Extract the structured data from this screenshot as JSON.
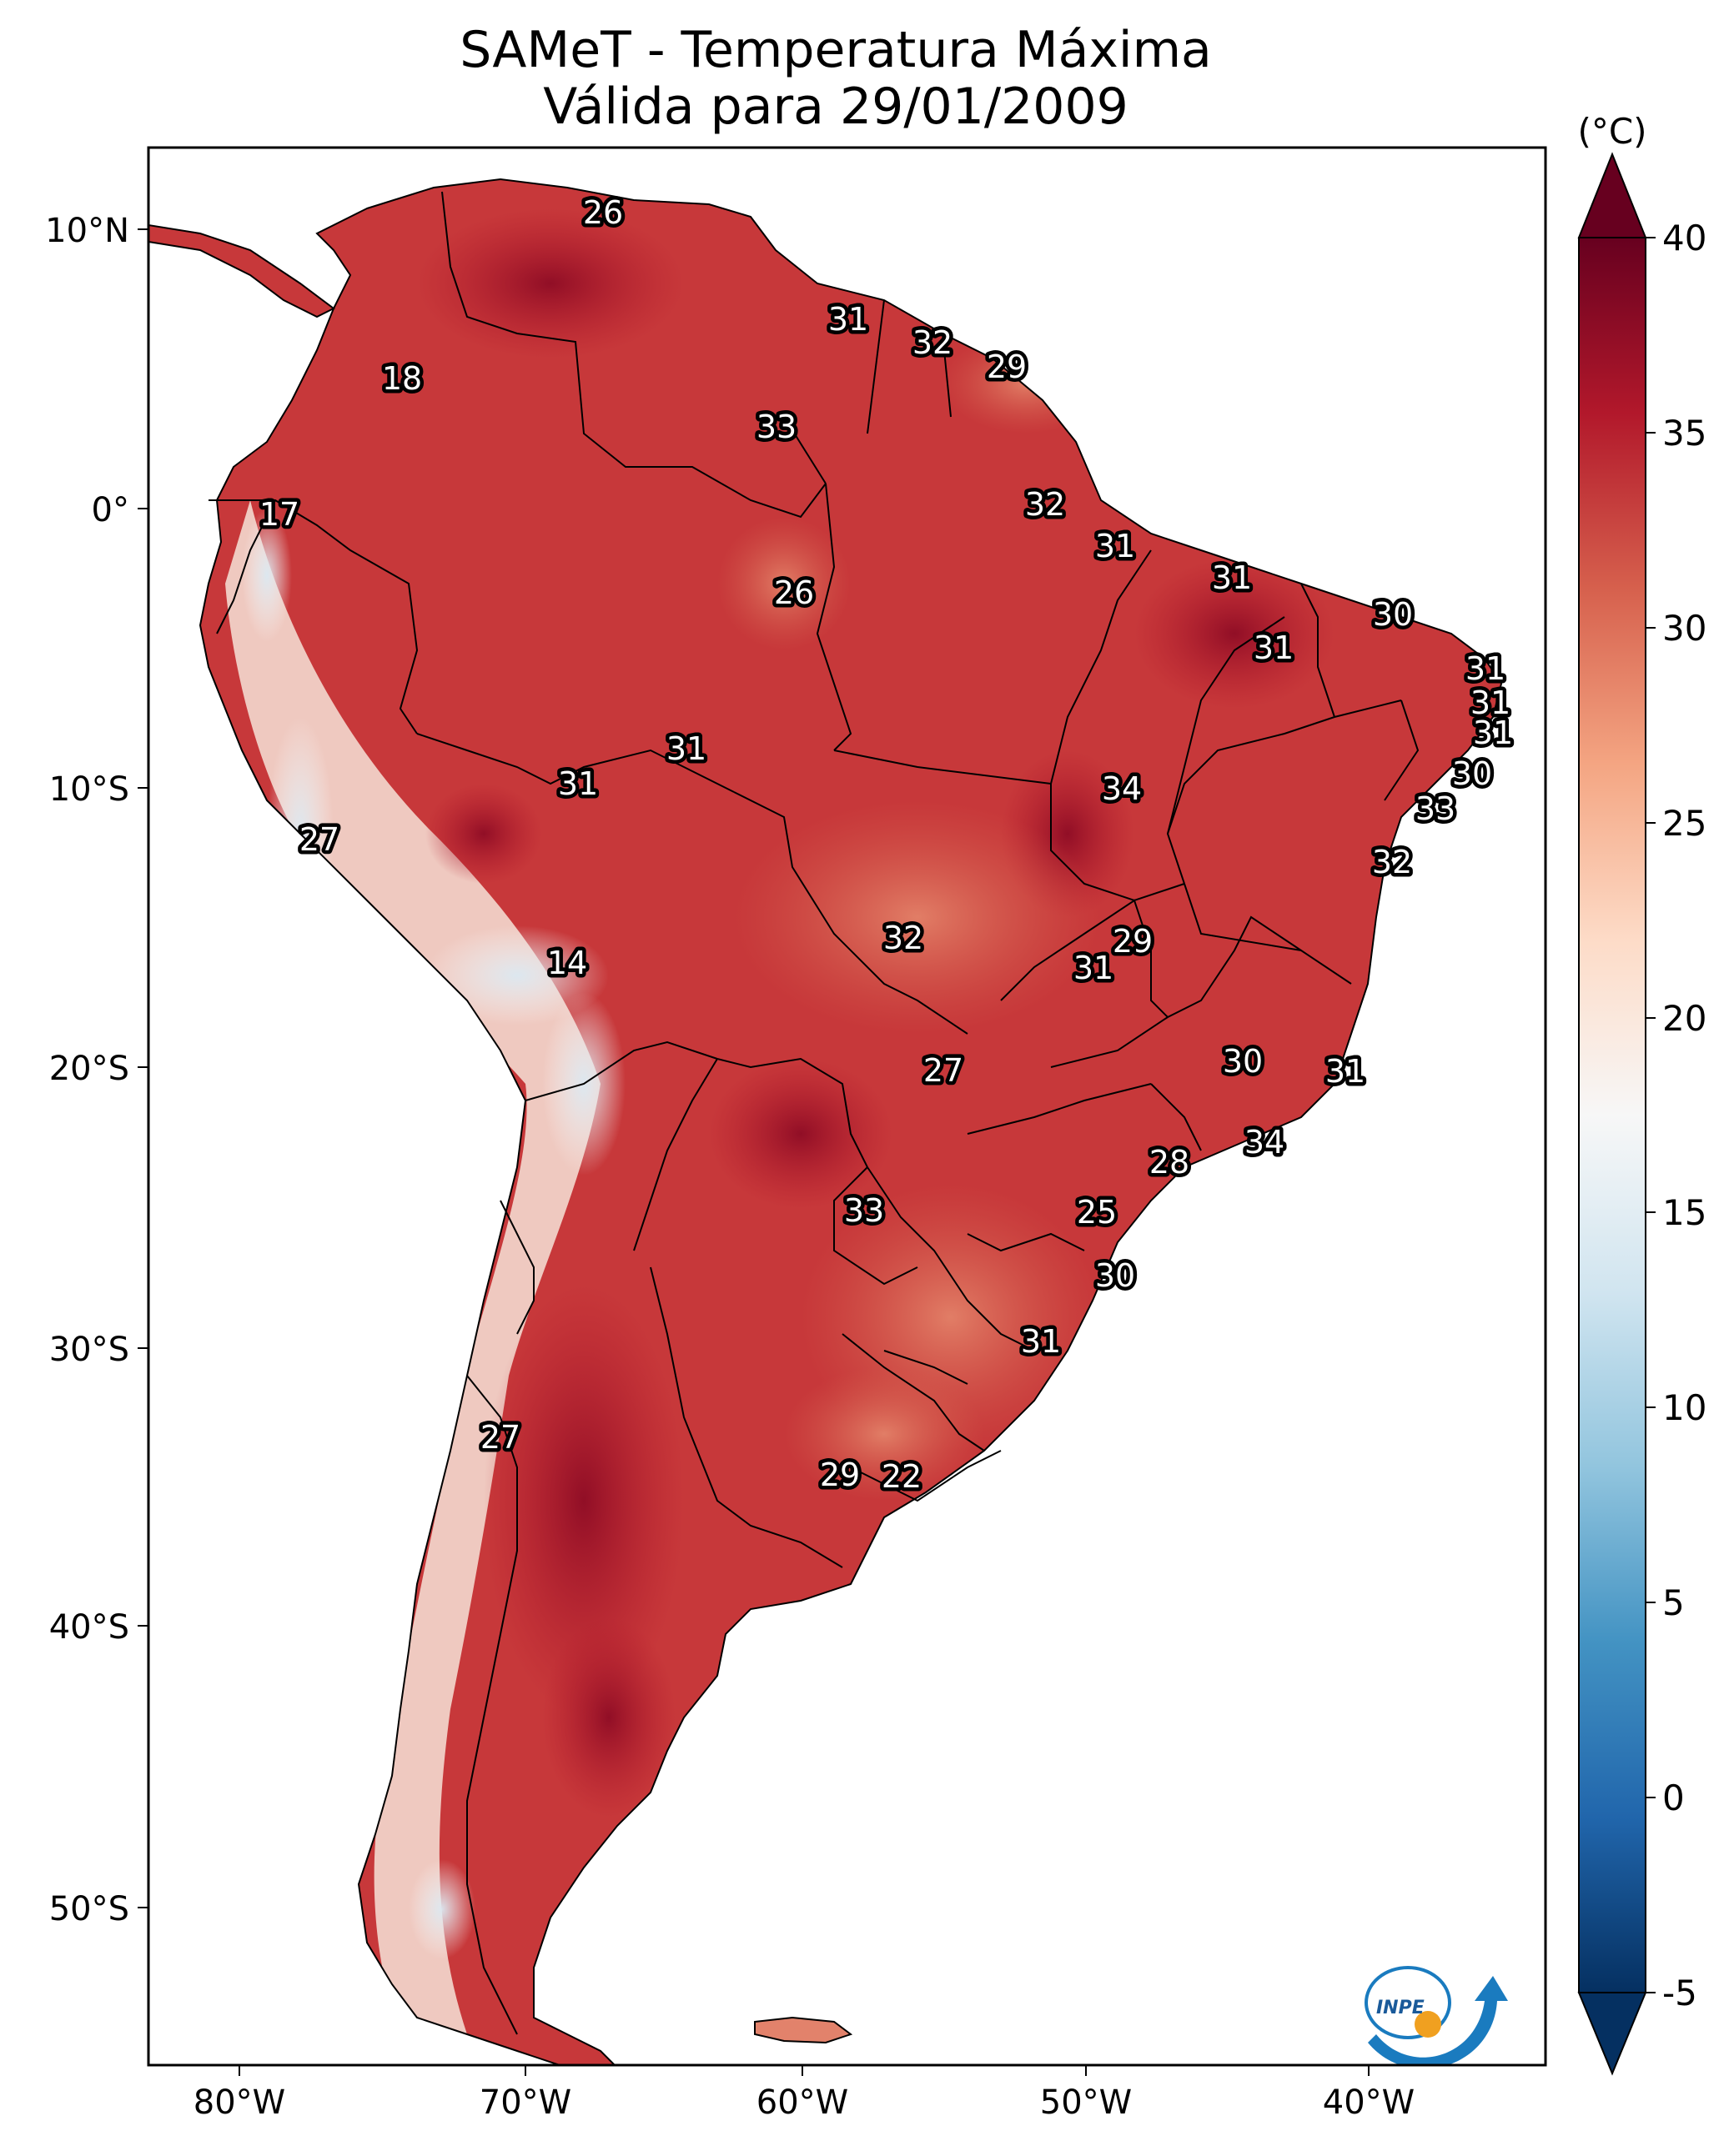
{
  "title": {
    "line1": "SAMeT - Temperatura Máxima",
    "line2": "Válida para 29/01/2009"
  },
  "axes": {
    "lon_ticks": [
      "80°W",
      "70°W",
      "60°W",
      "50°W",
      "40°W"
    ],
    "lat_ticks": [
      "10°N",
      "0°",
      "10°S",
      "20°S",
      "30°S",
      "40°S",
      "50°S"
    ]
  },
  "colorbar": {
    "unit": "(°C)",
    "ticks": [
      "40",
      "35",
      "30",
      "25",
      "20",
      "15",
      "10",
      "5",
      "0",
      "-5"
    ],
    "range": [
      -5,
      40
    ],
    "colormap": "RdBu_r",
    "colors": [
      "#053061",
      "#2166ac",
      "#4393c3",
      "#92c5de",
      "#d1e5f0",
      "#f7f7f7",
      "#fddbc7",
      "#f4a582",
      "#d6604d",
      "#b2182b",
      "#67001f"
    ]
  },
  "logo": {
    "text": "INPE"
  },
  "station_labels": [
    {
      "id": "s1",
      "value": "26"
    },
    {
      "id": "s2",
      "value": "31"
    },
    {
      "id": "s3",
      "value": "32"
    },
    {
      "id": "s4",
      "value": "29"
    },
    {
      "id": "s5",
      "value": "18"
    },
    {
      "id": "s6",
      "value": "33"
    },
    {
      "id": "s7",
      "value": "17"
    },
    {
      "id": "s8",
      "value": "32"
    },
    {
      "id": "s9",
      "value": "31"
    },
    {
      "id": "s10",
      "value": "26"
    },
    {
      "id": "s11",
      "value": "31"
    },
    {
      "id": "s12",
      "value": "30"
    },
    {
      "id": "s13",
      "value": "31"
    },
    {
      "id": "s14",
      "value": "31"
    },
    {
      "id": "s15",
      "value": "31"
    },
    {
      "id": "s16",
      "value": "31"
    },
    {
      "id": "s17",
      "value": "31"
    },
    {
      "id": "s18",
      "value": "30"
    },
    {
      "id": "s19",
      "value": "31"
    },
    {
      "id": "s20",
      "value": "34"
    },
    {
      "id": "s21",
      "value": "33"
    },
    {
      "id": "s22",
      "value": "27"
    },
    {
      "id": "s23",
      "value": "32"
    },
    {
      "id": "s24",
      "value": "14"
    },
    {
      "id": "s25",
      "value": "32"
    },
    {
      "id": "s26",
      "value": "29"
    },
    {
      "id": "s27",
      "value": "31"
    },
    {
      "id": "s28",
      "value": "30"
    },
    {
      "id": "s29",
      "value": "31"
    },
    {
      "id": "s30",
      "value": "27"
    },
    {
      "id": "s31",
      "value": "34"
    },
    {
      "id": "s32",
      "value": "28"
    },
    {
      "id": "s33",
      "value": "33"
    },
    {
      "id": "s34",
      "value": "25"
    },
    {
      "id": "s35",
      "value": "30"
    },
    {
      "id": "s36",
      "value": "31"
    },
    {
      "id": "s37",
      "value": "27"
    },
    {
      "id": "s38",
      "value": "29"
    },
    {
      "id": "s39",
      "value": "22"
    }
  ]
}
